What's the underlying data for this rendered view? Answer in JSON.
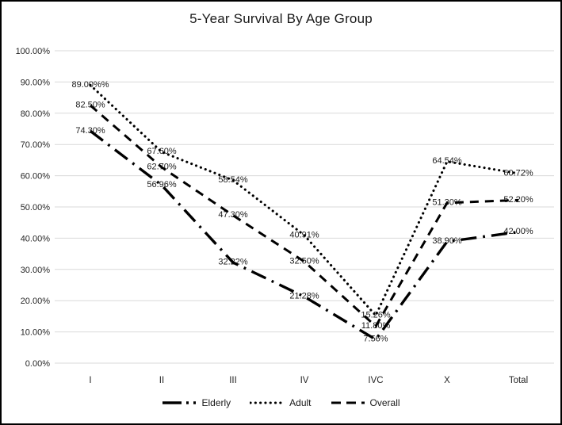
{
  "chart_data": {
    "type": "line",
    "title": "5-Year Survival By Age Group",
    "categories": [
      "I",
      "II",
      "III",
      "IV",
      "IVC",
      "X",
      "Total"
    ],
    "series": [
      {
        "name": "Elderly",
        "line_style": "long-dash-dot",
        "color": "#000000",
        "values": [
          74.3,
          56.96,
          32.22,
          21.28,
          7.56,
          38.9,
          42.0
        ],
        "labels": [
          "74.30%",
          "56.96%",
          "32.22%",
          "21.28%",
          "7.56%",
          "38.90%",
          "42.00%"
        ]
      },
      {
        "name": "Adult",
        "line_style": "dotted",
        "color": "#000000",
        "values": [
          89.0,
          67.6,
          58.54,
          40.91,
          15.26,
          64.54,
          60.72
        ],
        "labels": [
          "89.00%%",
          "67.60%",
          "58.54%",
          "40.91%",
          "15.26%",
          "64.54%",
          "60.72%"
        ]
      },
      {
        "name": "Overall",
        "line_style": "dashed",
        "color": "#000000",
        "values": [
          82.5,
          62.7,
          47.3,
          32.5,
          11.8,
          51.3,
          52.2
        ],
        "labels": [
          "82.50%",
          "62.70%",
          "47.30%",
          "32.50%",
          "11.80%",
          "51.30%",
          "52.20%"
        ]
      }
    ],
    "y_axis": {
      "min": 0,
      "max": 100,
      "ticks": [
        "0.00%",
        "10.00%",
        "20.00%",
        "30.00%",
        "40.00%",
        "50.00%",
        "60.00%",
        "70.00%",
        "80.00%",
        "90.00%",
        "100.00%"
      ]
    },
    "grid": true,
    "legend_position": "bottom",
    "colors": {
      "grid": "#d9d9d9",
      "axis_text": "#262626",
      "label_text": "#1a1a1a",
      "line": "#000000",
      "background": "#ffffff",
      "border": "#000000"
    }
  }
}
